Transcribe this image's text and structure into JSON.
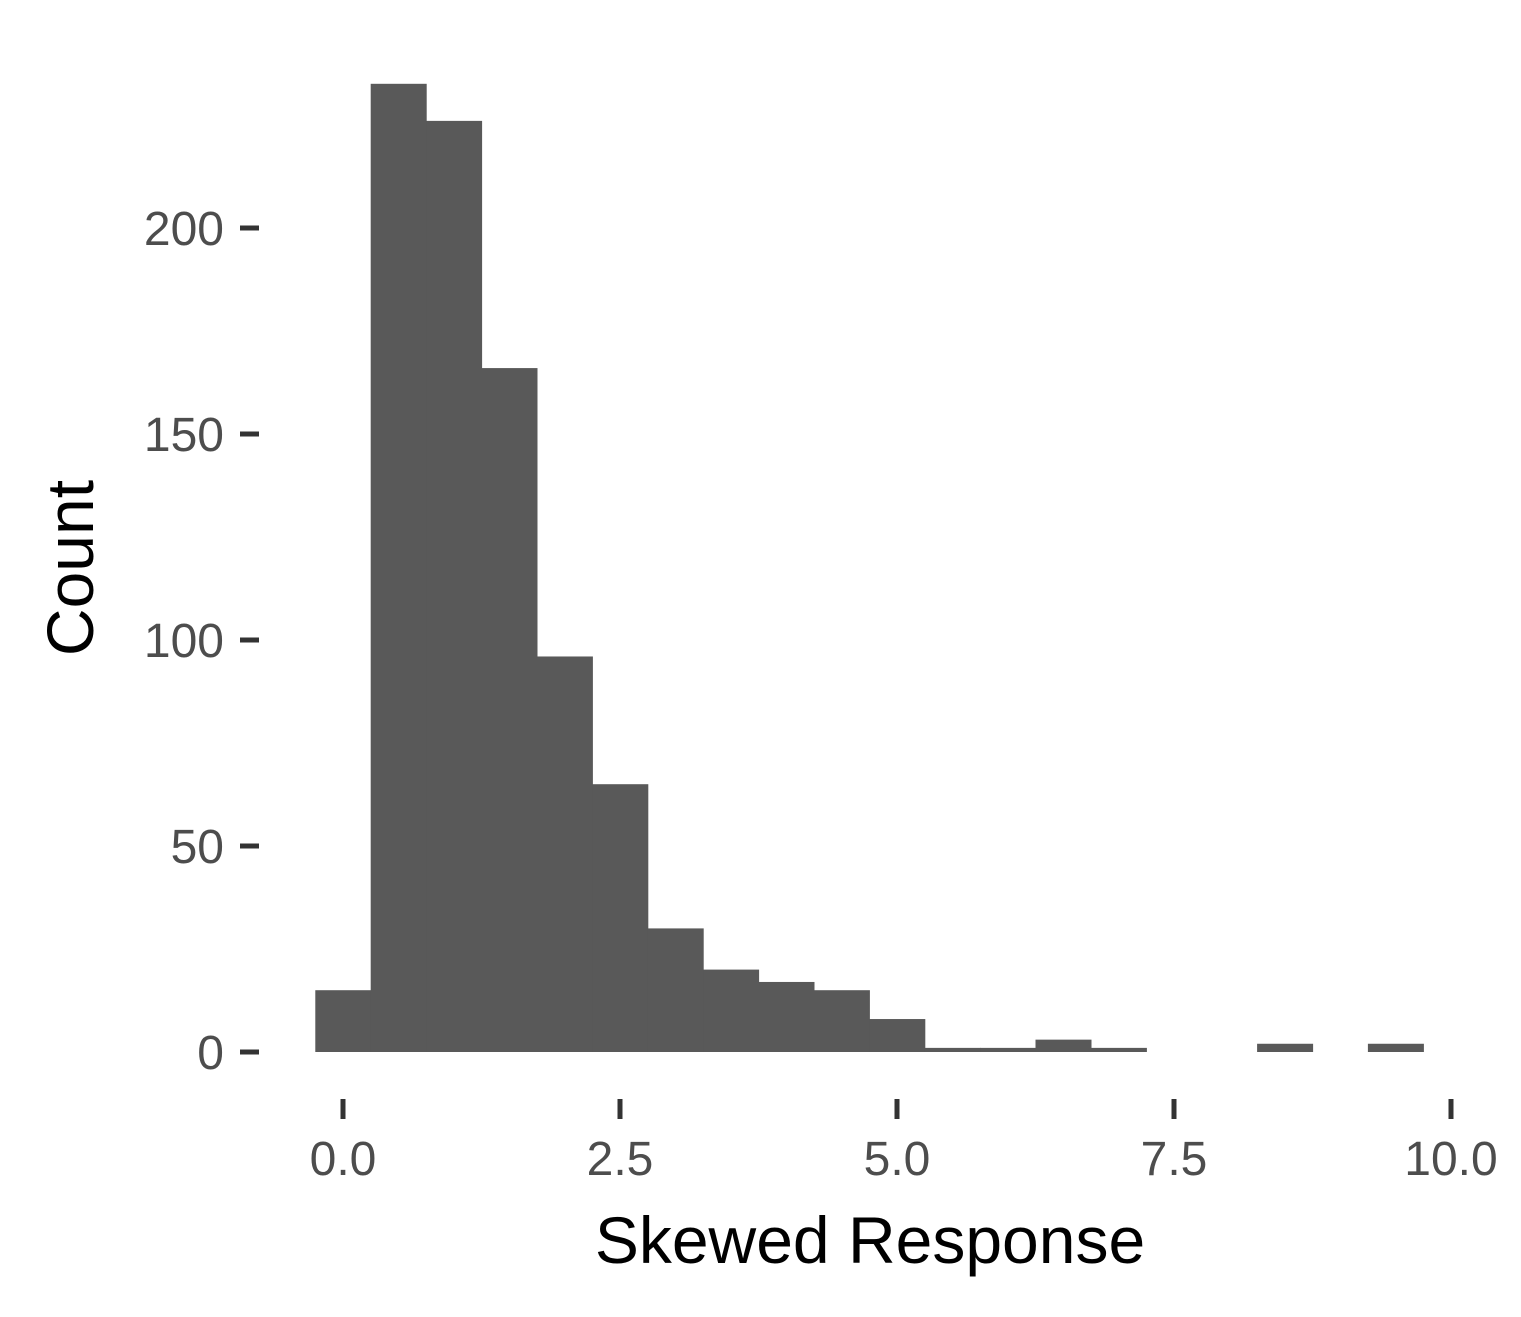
{
  "chart_data": {
    "type": "bar",
    "subtype": "histogram",
    "title": "",
    "xlabel": "Skewed Response",
    "ylabel": "Count",
    "xlim": [
      -0.5,
      10.0
    ],
    "ylim": [
      0,
      235
    ],
    "x_ticks": [
      {
        "value": 0.0,
        "label": "0.0"
      },
      {
        "value": 2.5,
        "label": "2.5"
      },
      {
        "value": 5.0,
        "label": "5.0"
      },
      {
        "value": 7.5,
        "label": "7.5"
      },
      {
        "value": 10.0,
        "label": "10.0"
      }
    ],
    "y_ticks": [
      {
        "value": 0,
        "label": "0"
      },
      {
        "value": 50,
        "label": "50"
      },
      {
        "value": 100,
        "label": "100"
      },
      {
        "value": 150,
        "label": "150"
      },
      {
        "value": 200,
        "label": "200"
      }
    ],
    "bin_width": 0.5,
    "bins": [
      {
        "start": -0.25,
        "end": 0.25,
        "count": 15
      },
      {
        "start": 0.25,
        "end": 0.75,
        "count": 235
      },
      {
        "start": 0.75,
        "end": 1.25,
        "count": 226
      },
      {
        "start": 1.25,
        "end": 1.75,
        "count": 166
      },
      {
        "start": 1.75,
        "end": 2.25,
        "count": 96
      },
      {
        "start": 2.25,
        "end": 2.75,
        "count": 65
      },
      {
        "start": 2.75,
        "end": 3.25,
        "count": 30
      },
      {
        "start": 3.25,
        "end": 3.75,
        "count": 20
      },
      {
        "start": 3.75,
        "end": 4.25,
        "count": 17
      },
      {
        "start": 4.25,
        "end": 4.75,
        "count": 15
      },
      {
        "start": 4.75,
        "end": 5.25,
        "count": 8
      },
      {
        "start": 5.25,
        "end": 5.75,
        "count": 1
      },
      {
        "start": 5.75,
        "end": 6.25,
        "count": 1
      },
      {
        "start": 6.25,
        "end": 6.75,
        "count": 3
      },
      {
        "start": 6.75,
        "end": 7.25,
        "count": 1
      },
      {
        "start": 7.25,
        "end": 7.75,
        "count": 0
      },
      {
        "start": 7.75,
        "end": 8.25,
        "count": 0
      },
      {
        "start": 8.25,
        "end": 8.75,
        "count": 2
      },
      {
        "start": 8.75,
        "end": 9.25,
        "count": 0
      },
      {
        "start": 9.25,
        "end": 9.75,
        "count": 2
      }
    ],
    "bar_color": "#595959",
    "grid": false,
    "legend": "none"
  }
}
